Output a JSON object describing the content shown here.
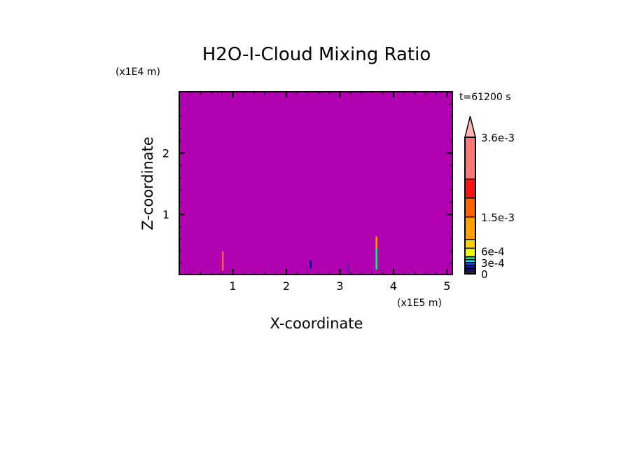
{
  "chart_data": {
    "type": "heatmap",
    "title": "H2O-I-Cloud Mixing Ratio",
    "time_label": "t=61200 s",
    "xlabel": "X-coordinate",
    "ylabel": "Z-coordinate",
    "x_unit": "(x1E5 m)",
    "y_unit": "(x1E4 m)",
    "xlim": [
      0,
      5.1
    ],
    "ylim": [
      0.02,
      3.0
    ],
    "x_ticks": [
      "1",
      "2",
      "3",
      "4",
      "5"
    ],
    "y_ticks": [
      "1",
      "2"
    ],
    "background_value": 0,
    "colorbar": {
      "levels": [
        0,
        5e-05,
        0.0001,
        0.00015,
        0.000225,
        0.0003,
        0.000375,
        0.00045,
        0.000675,
        0.0009,
        0.0015,
        0.002,
        0.0025,
        0.0036
      ],
      "colors": [
        "#b000b0",
        "#7010b0",
        "#000090",
        "#0018c0",
        "#0050ff",
        "#00e8ff",
        "#20f080",
        "#f0ff00",
        "#ffd000",
        "#ffa000",
        "#ff6400",
        "#ff1414",
        "#ff7878"
      ],
      "over_color": "#ffb4b4",
      "tick_labels": [
        {
          "value": 0,
          "label": "0"
        },
        {
          "value": 0.0003,
          "label": "3e-4"
        },
        {
          "value": 0.0006,
          "label": "6e-4"
        },
        {
          "value": 0.0015,
          "label": "1.5e-3"
        },
        {
          "value": 0.0036,
          "label": "3.6e-3"
        }
      ]
    },
    "features": [
      {
        "x": 0.81,
        "z0": 0.08,
        "z1": 0.4,
        "value": 0.0018
      },
      {
        "x": 3.68,
        "z0": 0.45,
        "z1": 0.64,
        "value": 0.0012
      },
      {
        "x": 3.68,
        "z0": 0.1,
        "z1": 0.45,
        "value": 0.0004
      },
      {
        "x": 2.45,
        "z0": 0.12,
        "z1": 0.25,
        "value": 0.0001
      },
      {
        "x": 3.15,
        "z0": 0.05,
        "z1": 0.2,
        "value": 5e-05
      }
    ]
  }
}
